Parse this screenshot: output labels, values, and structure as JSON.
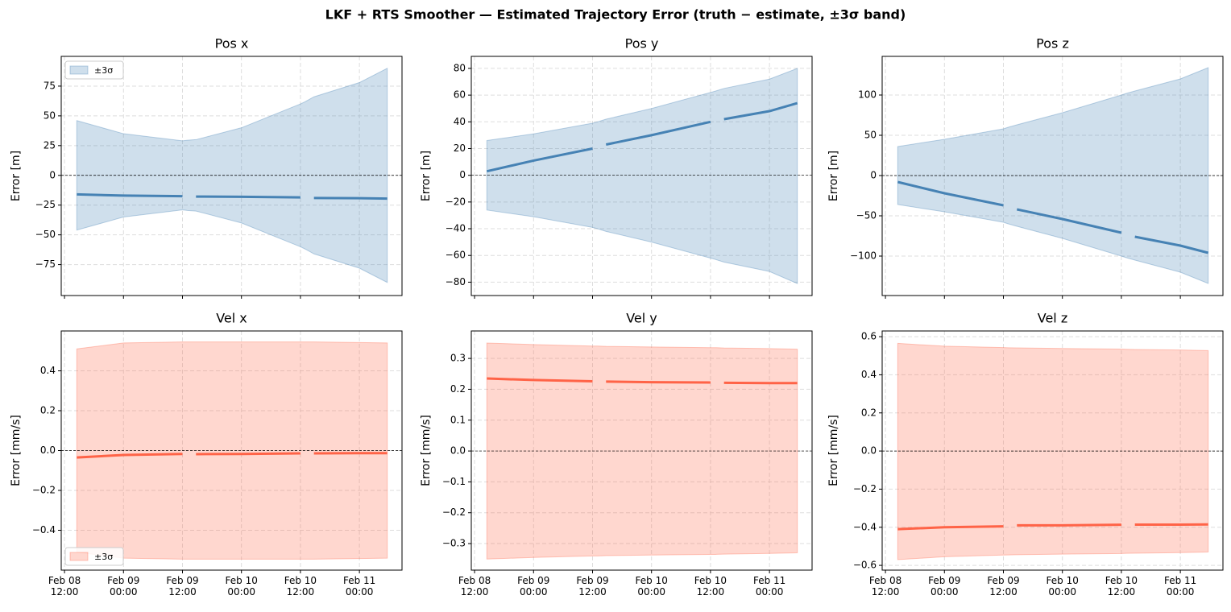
{
  "title": "LKF + RTS Smoother — Estimated Trajectory Error  (truth − estimate,  ±3σ band)",
  "chart_data": [
    {
      "type": "line",
      "title": "Pos x",
      "ylabel": "Error [m]",
      "show_xtick_labels": false,
      "zero_line": true,
      "grid": true,
      "x": [
        "Feb 08 14:30",
        "Feb 09 00:00",
        "Feb 09 12:00",
        "Feb 09 13:00",
        "Feb 09 14:45",
        "Feb 10 00:00",
        "Feb 10 12:00",
        "Feb 10 13:00",
        "Feb 10 14:45",
        "Feb 11 00:00",
        "Feb 11 05:40"
      ],
      "xlim": [
        "Feb 08 11:20",
        "Feb 11 08:40"
      ],
      "xticks": [
        "Feb 08 12:00",
        "Feb 09 00:00",
        "Feb 09 12:00",
        "Feb 10 00:00",
        "Feb 10 12:00",
        "Feb 11 00:00"
      ],
      "ylim": [
        -101,
        100
      ],
      "yticks": [
        {
          "value": -75,
          "label": "−75"
        },
        {
          "value": -50,
          "label": "−50"
        },
        {
          "value": -25,
          "label": "−25"
        },
        0,
        25,
        50,
        75
      ],
      "series": [
        {
          "color": "#4682b4",
          "values": [
            -16,
            -17,
            -17.5,
            null,
            -17.8,
            -18,
            -18.5,
            null,
            -19,
            -19.2,
            -19.5
          ]
        }
      ],
      "band": {
        "name": "±3σ",
        "color": "#4682b4",
        "legend": "upper left",
        "upper": [
          46,
          35,
          29,
          29.5,
          30,
          40,
          60,
          62,
          66,
          78,
          90
        ],
        "lower": [
          -46,
          -35,
          -29,
          -29.5,
          -30,
          -40,
          -60,
          -62,
          -66,
          -78,
          -90
        ]
      }
    },
    {
      "type": "line",
      "title": "Pos y",
      "ylabel": "Error [m]",
      "show_xtick_labels": false,
      "zero_line": true,
      "grid": true,
      "x": [
        "Feb 08 14:30",
        "Feb 09 00:00",
        "Feb 09 12:00",
        "Feb 09 13:00",
        "Feb 09 14:45",
        "Feb 10 00:00",
        "Feb 10 12:00",
        "Feb 10 13:00",
        "Feb 10 14:45",
        "Feb 11 00:00",
        "Feb 11 05:40"
      ],
      "xlim": [
        "Feb 08 11:20",
        "Feb 11 08:40"
      ],
      "xticks": [
        "Feb 08 12:00",
        "Feb 09 00:00",
        "Feb 09 12:00",
        "Feb 10 00:00",
        "Feb 10 12:00",
        "Feb 11 00:00"
      ],
      "ylim": [
        -90,
        89
      ],
      "yticks": [
        {
          "value": -80,
          "label": "−80"
        },
        {
          "value": -60,
          "label": "−60"
        },
        {
          "value": -40,
          "label": "−40"
        },
        {
          "value": -20,
          "label": "−20"
        },
        0,
        20,
        40,
        60,
        80
      ],
      "series": [
        {
          "color": "#4682b4",
          "values": [
            3,
            11,
            20,
            null,
            23,
            30,
            40,
            null,
            42,
            48,
            54
          ]
        }
      ],
      "band": {
        "color": "#4682b4",
        "upper": [
          26,
          31,
          39,
          40,
          42,
          50,
          62,
          63,
          65,
          72,
          80
        ],
        "lower": [
          -26,
          -31,
          -39,
          -40,
          -42,
          -50,
          -62,
          -63,
          -65,
          -72,
          -81
        ]
      }
    },
    {
      "type": "line",
      "title": "Pos z",
      "ylabel": "Error [m]",
      "show_xtick_labels": false,
      "zero_line": true,
      "grid": true,
      "x": [
        "Feb 08 14:30",
        "Feb 09 00:00",
        "Feb 09 12:00",
        "Feb 09 13:00",
        "Feb 09 14:45",
        "Feb 10 00:00",
        "Feb 10 12:00",
        "Feb 10 13:00",
        "Feb 10 14:45",
        "Feb 11 00:00",
        "Feb 11 05:40"
      ],
      "xlim": [
        "Feb 08 11:20",
        "Feb 11 08:40"
      ],
      "xticks": [
        "Feb 08 12:00",
        "Feb 09 00:00",
        "Feb 09 12:00",
        "Feb 10 00:00",
        "Feb 10 12:00",
        "Feb 11 00:00"
      ],
      "ylim": [
        -149,
        148
      ],
      "yticks": [
        {
          "value": -100,
          "label": "−100"
        },
        {
          "value": -50,
          "label": "−50"
        },
        0,
        50,
        100
      ],
      "series": [
        {
          "color": "#4682b4",
          "values": [
            -8,
            -22,
            -37,
            null,
            -42,
            -54,
            -71,
            null,
            -76,
            -87,
            -96
          ]
        }
      ],
      "band": {
        "color": "#4682b4",
        "upper": [
          36,
          45,
          58,
          60,
          63,
          78,
          100,
          102,
          105,
          120,
          134
        ],
        "lower": [
          -36,
          -45,
          -58,
          -60,
          -63,
          -78,
          -100,
          -102,
          -105,
          -120,
          -134
        ]
      }
    },
    {
      "type": "line",
      "title": "Vel x",
      "ylabel": "Error [mm/s]",
      "show_xtick_labels": true,
      "zero_line": true,
      "grid": true,
      "x": [
        "Feb 08 14:30",
        "Feb 09 00:00",
        "Feb 09 12:00",
        "Feb 09 13:00",
        "Feb 09 14:45",
        "Feb 10 00:00",
        "Feb 10 12:00",
        "Feb 10 13:00",
        "Feb 10 14:45",
        "Feb 11 00:00",
        "Feb 11 05:40"
      ],
      "xlim": [
        "Feb 08 11:20",
        "Feb 11 08:40"
      ],
      "xticks": [
        "Feb 08 12:00",
        "Feb 09 00:00",
        "Feb 09 12:00",
        "Feb 10 00:00",
        "Feb 10 12:00",
        "Feb 11 00:00"
      ],
      "ylim": [
        -0.6,
        0.6
      ],
      "yticks": [
        {
          "value": -0.4,
          "label": "−0.4"
        },
        {
          "value": -0.2,
          "label": "−0.2"
        },
        {
          "value": 0,
          "label": "0.0"
        },
        0.2,
        0.4
      ],
      "series": [
        {
          "color": "#ff6347",
          "values": [
            -0.035,
            -0.022,
            -0.017,
            null,
            -0.018,
            -0.017,
            -0.014,
            null,
            -0.014,
            -0.013,
            -0.013
          ]
        }
      ],
      "band": {
        "name": "±3σ",
        "color": "#ff6347",
        "legend": "lower left",
        "upper": [
          0.51,
          0.54,
          0.545,
          0.545,
          0.545,
          0.545,
          0.545,
          0.545,
          0.545,
          0.542,
          0.54
        ],
        "lower": [
          -0.51,
          -0.54,
          -0.545,
          -0.545,
          -0.545,
          -0.545,
          -0.545,
          -0.545,
          -0.545,
          -0.542,
          -0.54
        ]
      }
    },
    {
      "type": "line",
      "title": "Vel y",
      "ylabel": "Error [mm/s]",
      "show_xtick_labels": true,
      "zero_line": true,
      "grid": true,
      "x": [
        "Feb 08 14:30",
        "Feb 09 00:00",
        "Feb 09 12:00",
        "Feb 09 13:00",
        "Feb 09 14:45",
        "Feb 10 00:00",
        "Feb 10 12:00",
        "Feb 10 13:00",
        "Feb 10 14:45",
        "Feb 11 00:00",
        "Feb 11 05:40"
      ],
      "xlim": [
        "Feb 08 11:20",
        "Feb 11 08:40"
      ],
      "xticks": [
        "Feb 08 12:00",
        "Feb 09 00:00",
        "Feb 09 12:00",
        "Feb 10 00:00",
        "Feb 10 12:00",
        "Feb 11 00:00"
      ],
      "ylim": [
        -0.386,
        0.389
      ],
      "yticks": [
        {
          "value": -0.3,
          "label": "−0.3"
        },
        {
          "value": -0.2,
          "label": "−0.2"
        },
        {
          "value": -0.1,
          "label": "−0.1"
        },
        {
          "value": 0,
          "label": "0.0"
        },
        0.1,
        0.2,
        0.3
      ],
      "series": [
        {
          "color": "#ff6347",
          "values": [
            0.235,
            0.23,
            0.226,
            null,
            0.225,
            0.223,
            0.222,
            null,
            0.221,
            0.22,
            0.22
          ]
        }
      ],
      "band": {
        "color": "#ff6347",
        "upper": [
          0.35,
          0.345,
          0.34,
          0.34,
          0.339,
          0.337,
          0.335,
          0.335,
          0.334,
          0.332,
          0.33
        ],
        "lower": [
          -0.35,
          -0.345,
          -0.34,
          -0.34,
          -0.339,
          -0.337,
          -0.335,
          -0.335,
          -0.334,
          -0.332,
          -0.33
        ]
      }
    },
    {
      "type": "line",
      "title": "Vel z",
      "ylabel": "Error [mm/s]",
      "show_xtick_labels": true,
      "zero_line": true,
      "grid": true,
      "x": [
        "Feb 08 14:30",
        "Feb 09 00:00",
        "Feb 09 12:00",
        "Feb 09 13:00",
        "Feb 09 14:45",
        "Feb 10 00:00",
        "Feb 10 12:00",
        "Feb 10 13:00",
        "Feb 10 14:45",
        "Feb 11 00:00",
        "Feb 11 05:40"
      ],
      "xlim": [
        "Feb 08 11:20",
        "Feb 11 08:40"
      ],
      "xticks": [
        "Feb 08 12:00",
        "Feb 09 00:00",
        "Feb 09 12:00",
        "Feb 10 00:00",
        "Feb 10 12:00",
        "Feb 11 00:00"
      ],
      "ylim": [
        -0.625,
        0.63
      ],
      "yticks": [
        {
          "value": -0.6,
          "label": "−0.6"
        },
        {
          "value": -0.4,
          "label": "−0.4"
        },
        {
          "value": -0.2,
          "label": "−0.2"
        },
        {
          "value": 0,
          "label": "0.0"
        },
        0.2,
        0.4,
        0.6
      ],
      "series": [
        {
          "color": "#ff6347",
          "values": [
            -0.41,
            -0.4,
            -0.395,
            null,
            -0.39,
            -0.39,
            -0.387,
            null,
            -0.386,
            -0.386,
            -0.385
          ]
        }
      ],
      "band": {
        "color": "#ff6347",
        "upper": [
          0.565,
          0.55,
          0.543,
          0.542,
          0.541,
          0.538,
          0.535,
          0.534,
          0.533,
          0.53,
          0.527
        ],
        "lower": [
          -0.57,
          -0.555,
          -0.546,
          -0.545,
          -0.544,
          -0.541,
          -0.538,
          -0.537,
          -0.536,
          -0.533,
          -0.53
        ]
      }
    }
  ]
}
